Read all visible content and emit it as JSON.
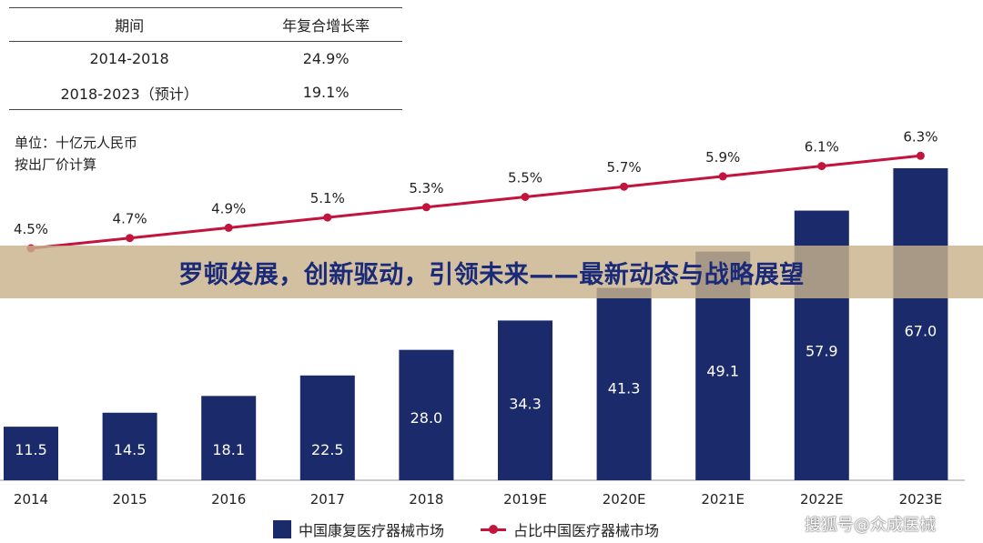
{
  "table": {
    "headers": [
      "期间",
      "年复合增长率"
    ],
    "rows": [
      [
        "2014-2018",
        "24.9%"
      ],
      [
        "2018-2023（预计）",
        "19.1%"
      ]
    ]
  },
  "unit_note": {
    "line1": "单位：十亿元人民币",
    "line2": "按出厂价计算"
  },
  "banner": {
    "title": "罗顿发展，创新驱动，引领未来——最新动态与战略展望"
  },
  "watermark": "搜狐号@众成医械",
  "colors": {
    "bar": "#1b2a6b",
    "line": "#c2143d",
    "banner_bg": "#c8b28c",
    "banner_text": "#1a2a78"
  },
  "chart_data": {
    "type": "bar",
    "categories": [
      "2014",
      "2015",
      "2016",
      "2017",
      "2018",
      "2019E",
      "2020E",
      "2021E",
      "2022E",
      "2023E"
    ],
    "series": [
      {
        "name": "中国康复医疗器械市场",
        "type": "bar",
        "values": [
          11.5,
          14.5,
          18.1,
          22.5,
          28.0,
          34.3,
          41.3,
          49.1,
          57.9,
          67.0
        ],
        "labels": [
          "11.5",
          "14.5",
          "18.1",
          "22.5",
          "28.0",
          "34.3",
          "41.3",
          "49.1",
          "57.9",
          "67.0"
        ]
      },
      {
        "name": "占比中国医疗器械市场",
        "type": "line",
        "values": [
          4.5,
          4.7,
          4.9,
          5.1,
          5.3,
          5.5,
          5.7,
          5.9,
          6.1,
          6.3
        ],
        "labels": [
          "4.5%",
          "4.7%",
          "4.9%",
          "5.1%",
          "5.3%",
          "5.5%",
          "5.7%",
          "5.9%",
          "6.1%",
          "6.3%"
        ]
      }
    ],
    "legend": "bottom"
  }
}
